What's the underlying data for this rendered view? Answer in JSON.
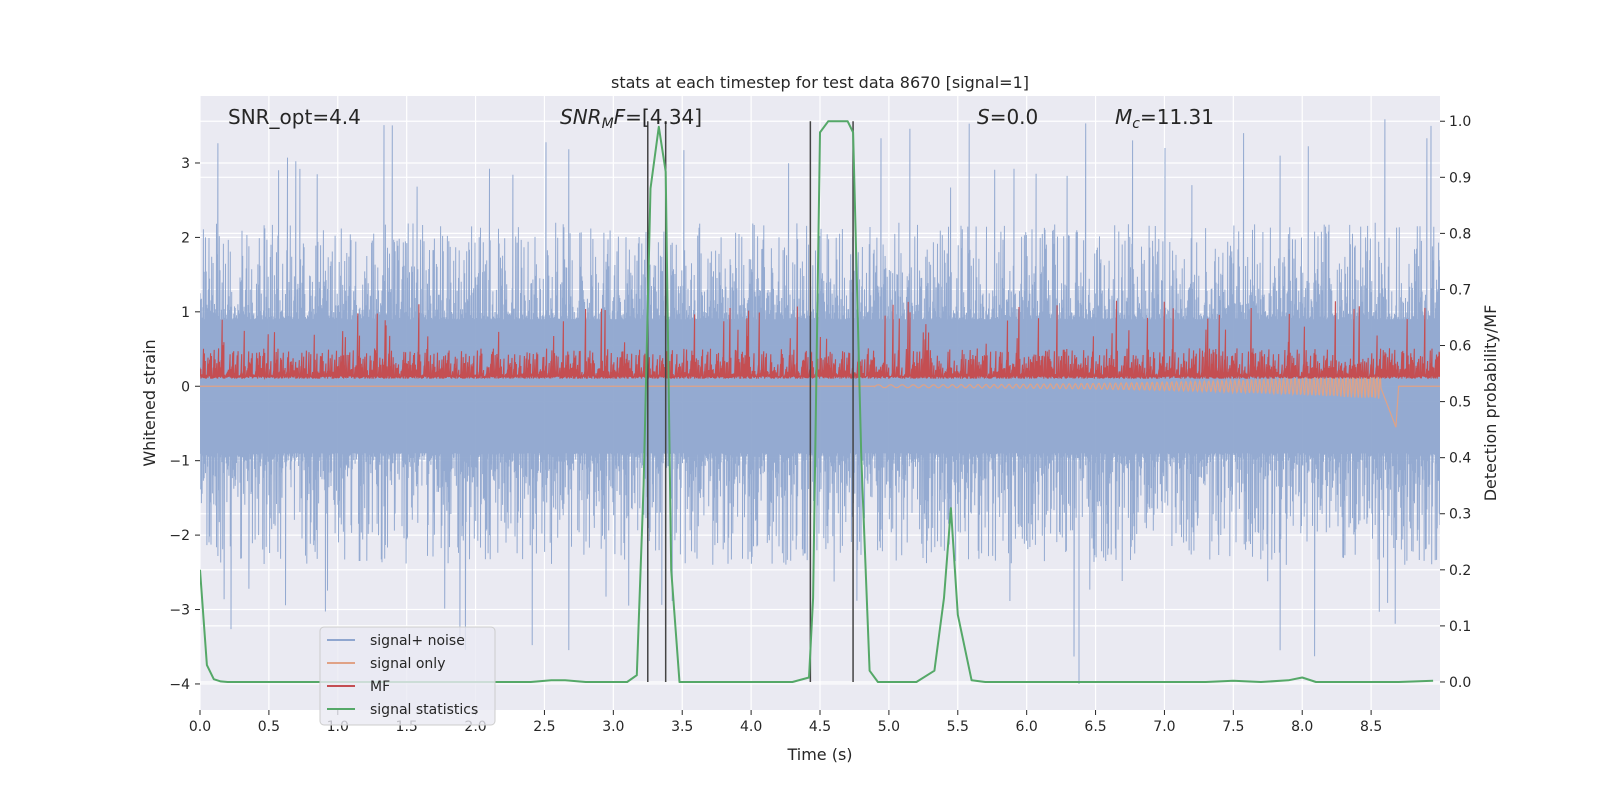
{
  "chart_data": {
    "type": "line",
    "title": "stats at each timestep for test data 8670 [signal=1]",
    "xlabel": "Time (s)",
    "ylabel_left": "Whitened strain",
    "ylabel_right": "Detection probability/MF",
    "xlim": [
      0.0,
      9.0
    ],
    "ylim_left": [
      -4.35,
      3.9
    ],
    "ylim_right": [
      -0.05,
      1.045
    ],
    "xticks": [
      "0.0",
      "0.5",
      "1.0",
      "1.5",
      "2.0",
      "2.5",
      "3.0",
      "3.5",
      "4.0",
      "4.5",
      "5.0",
      "5.5",
      "6.0",
      "6.5",
      "7.0",
      "7.5",
      "8.0",
      "8.5"
    ],
    "xtick_values": [
      0.0,
      0.5,
      1.0,
      1.5,
      2.0,
      2.5,
      3.0,
      3.5,
      4.0,
      4.5,
      5.0,
      5.5,
      6.0,
      6.5,
      7.0,
      7.5,
      8.0,
      8.5
    ],
    "yticks_left": [
      "3",
      "2",
      "1",
      "0",
      "−1",
      "−2",
      "−3",
      "−4"
    ],
    "ytick_values_left": [
      3,
      2,
      1,
      0,
      -1,
      -2,
      -3,
      -4
    ],
    "yticks_right": [
      "1.0",
      "0.9",
      "0.8",
      "0.7",
      "0.6",
      "0.5",
      "0.4",
      "0.3",
      "0.2",
      "0.1",
      "0.0"
    ],
    "ytick_values_right": [
      1.0,
      0.9,
      0.8,
      0.7,
      0.6,
      0.5,
      0.4,
      0.3,
      0.2,
      0.1,
      0.0
    ],
    "annotations": {
      "snr_opt": "SNR_opt=4.4",
      "snr_mf": "SNR",
      "snr_mf_sub": "M",
      "snr_mf_f": "F",
      "snr_mf_val": "=[4.34]",
      "s_sym": "S",
      "s_val": "=0.0",
      "mc_sym": "M",
      "mc_sub": "c",
      "mc_val": "=11.31"
    },
    "legend": {
      "placement": "lower-left",
      "entries": [
        "signal+ noise",
        "signal only",
        "MF",
        "signal statistics"
      ]
    },
    "colors": {
      "signal_noise": "#8fa6cf",
      "signal_only": "#e0a286",
      "mf": "#c44e52",
      "signal_stats": "#55a868",
      "vlines": "#444444",
      "plot_bg": "#eaeaf2",
      "grid": "#ffffff"
    },
    "vertical_lines_x": [
      3.25,
      3.38,
      4.43,
      4.74
    ],
    "signal_statistics": {
      "x": [
        0.0,
        0.05,
        0.1,
        0.15,
        0.2,
        0.3,
        0.5,
        1.0,
        1.5,
        2.0,
        2.4,
        2.55,
        2.65,
        2.8,
        3.0,
        3.1,
        3.17,
        3.22,
        3.27,
        3.33,
        3.38,
        3.42,
        3.48,
        3.6,
        4.0,
        4.3,
        4.42,
        4.45,
        4.5,
        4.56,
        4.62,
        4.7,
        4.74,
        4.8,
        4.86,
        4.92,
        5.0,
        5.2,
        5.33,
        5.4,
        5.45,
        5.5,
        5.6,
        5.7,
        5.8,
        6.0,
        6.5,
        7.0,
        7.3,
        7.5,
        7.7,
        7.9,
        8.0,
        8.1,
        8.3,
        8.5,
        8.7,
        8.95
      ],
      "y": [
        0.2,
        0.03,
        0.005,
        0.001,
        0.0,
        0.0,
        0.0,
        0.0,
        0.0,
        0.0,
        0.0,
        0.003,
        0.003,
        0.0,
        0.0,
        0.0,
        0.012,
        0.35,
        0.88,
        0.99,
        0.91,
        0.2,
        0.0,
        0.0,
        0.0,
        0.0,
        0.008,
        0.15,
        0.98,
        1.0,
        1.0,
        1.0,
        0.98,
        0.4,
        0.02,
        0.0,
        0.0,
        0.0,
        0.02,
        0.15,
        0.31,
        0.12,
        0.003,
        0.0,
        0.0,
        0.0,
        0.0,
        0.0,
        0.0,
        0.002,
        0.0,
        0.003,
        0.008,
        0.0,
        0.0,
        0.0,
        0.0,
        0.002
      ]
    },
    "noise_model": {
      "typical_positive_peak": 1.9,
      "typical_negative_peak": -2.1,
      "max_positive": 3.6,
      "min_negative": -4.0
    },
    "mf_model": {
      "baseline_right_axis": 0.545,
      "spike_peak_right_axis": 0.68
    },
    "signal_only_model": {
      "chirp_start_s": 4.9,
      "chirp_end_s": 8.68,
      "final_dip_left_axis": -0.55
    }
  }
}
